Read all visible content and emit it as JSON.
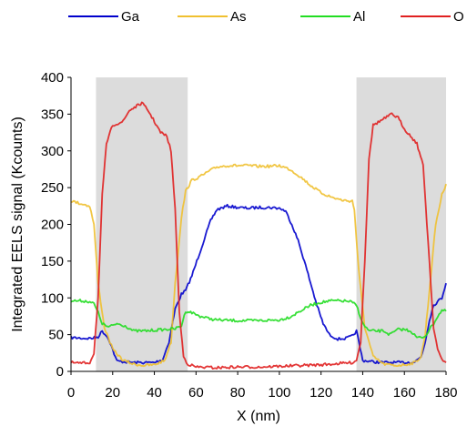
{
  "chart_data": {
    "type": "line",
    "title": "",
    "xlabel": "X (nm)",
    "ylabel": "Integrated EELS signal (Kcounts)",
    "xlim": [
      0,
      180
    ],
    "ylim": [
      0,
      400
    ],
    "xticks": [
      0,
      20,
      40,
      60,
      80,
      100,
      120,
      140,
      160,
      180
    ],
    "yticks": [
      0,
      50,
      100,
      150,
      200,
      250,
      300,
      350,
      400
    ],
    "grid": false,
    "legend": "top",
    "shaded_regions": [
      [
        12,
        56
      ],
      [
        137,
        180
      ]
    ],
    "series": [
      {
        "name": "Ga",
        "color": "#0000cc",
        "x": [
          0,
          6,
          10,
          13,
          15,
          18,
          22,
          30,
          40,
          44,
          47,
          50,
          53,
          55,
          58,
          61,
          64,
          67,
          70,
          75,
          80,
          85,
          90,
          95,
          100,
          103,
          106,
          109,
          112,
          115,
          118,
          121,
          124,
          128,
          132,
          135,
          137,
          140,
          145,
          150,
          155,
          160,
          165,
          168,
          170,
          172,
          174,
          176,
          178,
          180
        ],
        "y": [
          46,
          45,
          45,
          47,
          55,
          45,
          14,
          12,
          12,
          16,
          40,
          85,
          105,
          110,
          130,
          155,
          180,
          205,
          220,
          225,
          223,
          222,
          223,
          223,
          222,
          218,
          200,
          178,
          150,
          120,
          90,
          65,
          50,
          44,
          45,
          48,
          55,
          15,
          13,
          12,
          12,
          12,
          13,
          20,
          40,
          70,
          90,
          95,
          100,
          120
        ]
      },
      {
        "name": "As",
        "color": "#f0c030",
        "x": [
          0,
          5,
          9,
          11,
          13,
          16,
          20,
          25,
          30,
          35,
          40,
          45,
          48,
          50,
          53,
          55,
          58,
          62,
          66,
          70,
          75,
          80,
          85,
          90,
          95,
          100,
          105,
          110,
          115,
          120,
          125,
          130,
          133,
          135,
          136,
          138,
          141,
          145,
          150,
          155,
          160,
          165,
          168,
          170,
          172,
          175,
          178,
          180
        ],
        "y": [
          232,
          228,
          225,
          200,
          120,
          60,
          30,
          15,
          10,
          8,
          9,
          15,
          40,
          120,
          210,
          245,
          260,
          265,
          272,
          278,
          280,
          280,
          280,
          279,
          279,
          280,
          275,
          265,
          253,
          243,
          237,
          233,
          232,
          232,
          220,
          140,
          60,
          20,
          10,
          8,
          9,
          12,
          20,
          50,
          110,
          200,
          240,
          255
        ]
      },
      {
        "name": "Al",
        "color": "#22dd22",
        "x": [
          0,
          5,
          9,
          11,
          13,
          15,
          18,
          22,
          26,
          30,
          35,
          40,
          45,
          50,
          53,
          55,
          58,
          62,
          66,
          70,
          80,
          90,
          100,
          105,
          110,
          115,
          120,
          125,
          130,
          134,
          137,
          140,
          143,
          147,
          150,
          153,
          157,
          160,
          163,
          166,
          168,
          170,
          172,
          174,
          176,
          178,
          180
        ],
        "y": [
          96,
          96,
          95,
          92,
          80,
          65,
          60,
          65,
          62,
          55,
          55,
          56,
          57,
          58,
          62,
          82,
          80,
          75,
          72,
          70,
          69,
          69,
          70,
          74,
          82,
          90,
          94,
          96,
          96,
          95,
          90,
          65,
          55,
          55,
          55,
          50,
          57,
          57,
          55,
          46,
          46,
          48,
          57,
          65,
          75,
          83,
          82
        ]
      },
      {
        "name": "O",
        "color": "#e02020",
        "x": [
          0,
          5,
          9,
          11,
          13,
          15,
          17,
          20,
          25,
          28,
          31,
          34,
          37,
          40,
          43,
          46,
          48,
          50,
          52,
          54,
          56,
          60,
          70,
          80,
          90,
          100,
          110,
          120,
          130,
          135,
          137,
          139,
          141,
          143,
          145,
          148,
          151,
          154,
          157,
          160,
          163,
          166,
          169,
          172,
          174,
          176,
          178,
          180
        ],
        "y": [
          12,
          11,
          12,
          25,
          100,
          240,
          310,
          335,
          340,
          355,
          360,
          365,
          355,
          340,
          325,
          320,
          300,
          220,
          80,
          20,
          10,
          6,
          5,
          6,
          6,
          7,
          8,
          9,
          11,
          12,
          15,
          40,
          150,
          290,
          335,
          340,
          345,
          350,
          345,
          330,
          320,
          310,
          280,
          150,
          60,
          30,
          15,
          12
        ]
      }
    ]
  }
}
